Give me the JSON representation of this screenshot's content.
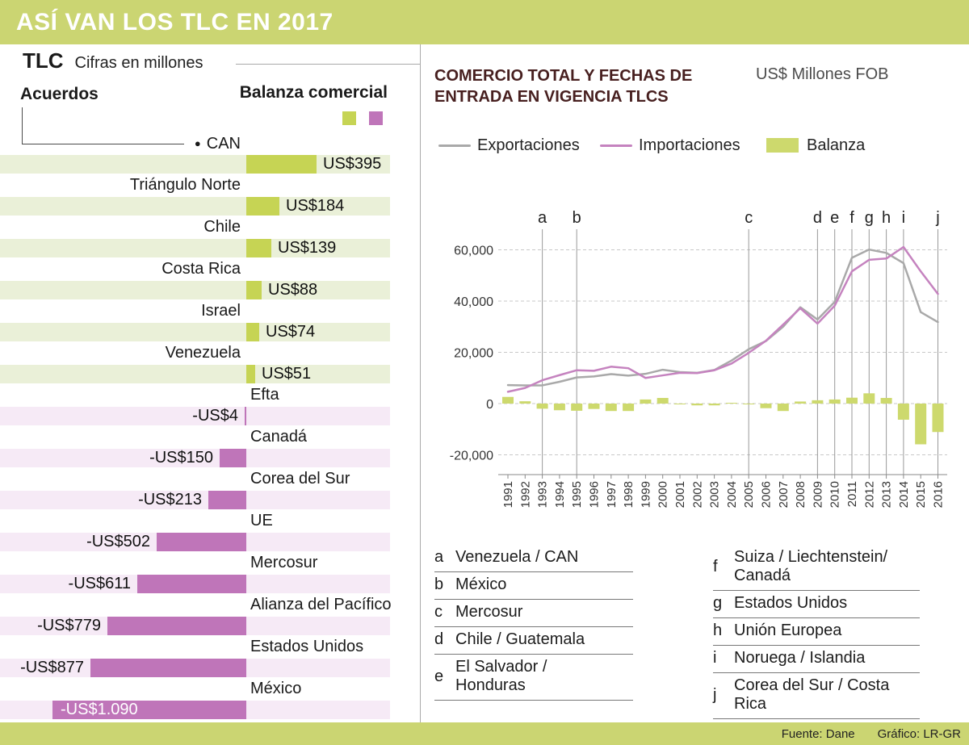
{
  "header": {
    "title": "ASÍ VAN LOS TLC EN 2017"
  },
  "footer": {
    "fuente": "Fuente: Dane",
    "grafico": "Gráfico: LR-GR"
  },
  "colors": {
    "band_green": "#cbd572",
    "bar_green": "#c6d454",
    "bar_purple": "#bf75b9",
    "row_green": "#eaf0d8",
    "row_purple": "#f6eaf6",
    "line_gray": "#a9a9a9",
    "line_purple": "#c583bf",
    "balanza_green": "#cdd96d",
    "heading_maroon": "#471f1f"
  },
  "left_panel": {
    "title": "TLC",
    "subtitle": "Cifras en millones",
    "col_acuerdos": "Acuerdos",
    "col_balanza": "Balanza comercial"
  },
  "right_panel": {
    "heading": "COMERCIO TOTAL Y FECHAS DE ENTRADA EN VIGENCIA TLCS",
    "unit": "US$ Millones FOB",
    "legend": [
      {
        "label": "Exportaciones",
        "swatch": "line",
        "color": "#a9a9a9"
      },
      {
        "label": "Importaciones",
        "swatch": "line",
        "color": "#c583bf"
      },
      {
        "label": "Balanza",
        "swatch": "rect",
        "color": "#cdd96d"
      }
    ]
  },
  "chart_data": [
    {
      "type": "bar",
      "orientation": "horizontal",
      "title": "Balanza comercial",
      "unit": "US$ millones",
      "categories": [
        "CAN",
        "Triángulo Norte",
        "Chile",
        "Costa Rica",
        "Israel",
        "Venezuela",
        "Efta",
        "Canadá",
        "Corea del Sur",
        "UE",
        "Mercosur",
        "Alianza del Pacífico",
        "Estados Unidos",
        "México"
      ],
      "values": [
        395,
        184,
        139,
        88,
        74,
        51,
        -4,
        -150,
        -213,
        -502,
        -611,
        -779,
        -877,
        -1090
      ],
      "value_labels": [
        "US$395",
        "US$184",
        "US$139",
        "US$88",
        "US$74",
        "US$51",
        "-US$4",
        "-US$150",
        "-US$213",
        "-US$502",
        "-US$611",
        "-US$779",
        "-US$877",
        "-US$1.090"
      ]
    },
    {
      "type": "line",
      "title": "COMERCIO TOTAL Y FECHAS DE ENTRADA EN VIGENCIA TLCS",
      "ylabel": "US$ Millones FOB",
      "ylim": [
        -20000,
        60000
      ],
      "yticks": [
        60000,
        40000,
        20000,
        0,
        -20000
      ],
      "ytick_labels": [
        "60,000",
        "40,000",
        "20,000",
        "0",
        "-20,000"
      ],
      "x": [
        1991,
        1992,
        1993,
        1994,
        1995,
        1996,
        1997,
        1998,
        1999,
        2000,
        2001,
        2002,
        2003,
        2004,
        2005,
        2006,
        2007,
        2008,
        2009,
        2010,
        2011,
        2012,
        2013,
        2014,
        2015,
        2016
      ],
      "series": [
        {
          "name": "Exportaciones",
          "color": "#a9a9a9",
          "values": [
            7200,
            7100,
            7100,
            8500,
            10200,
            10600,
            11500,
            10900,
            11600,
            13200,
            12300,
            12000,
            13100,
            16800,
            21200,
            24400,
            30000,
            37600,
            32800,
            39700,
            56900,
            60100,
            58800,
            54800,
            35700,
            31800
          ]
        },
        {
          "name": "Importaciones",
          "color": "#c583bf",
          "values": [
            4600,
            6100,
            9100,
            11100,
            13000,
            12800,
            14400,
            13800,
            10000,
            11000,
            12000,
            11900,
            13000,
            15600,
            19800,
            24500,
            30800,
            37200,
            31200,
            38200,
            51600,
            56100,
            56600,
            61100,
            51600,
            42800
          ]
        }
      ],
      "bars": {
        "name": "Balanza",
        "color": "#cdd96d",
        "values": [
          2600,
          900,
          -2000,
          -2600,
          -2800,
          -2100,
          -2900,
          -2900,
          1600,
          2200,
          -300,
          -700,
          -700,
          300,
          -200,
          -1800,
          -2900,
          800,
          1300,
          1600,
          2300,
          4000,
          2200,
          -6300,
          -15900,
          -11100
        ]
      },
      "markers": [
        {
          "letter": "a",
          "year": 1993,
          "label": "Venezuela / CAN"
        },
        {
          "letter": "b",
          "year": 1995,
          "label": "México"
        },
        {
          "letter": "c",
          "year": 2005,
          "label": "Mercosur"
        },
        {
          "letter": "d",
          "year": 2009,
          "label": "Chile / Guatemala"
        },
        {
          "letter": "e",
          "year": 2010,
          "label": "El Salvador / Honduras"
        },
        {
          "letter": "f",
          "year": 2011,
          "label": "Suiza / Liechtenstein/ Canadá"
        },
        {
          "letter": "g",
          "year": 2012,
          "label": "Estados Unidos"
        },
        {
          "letter": "h",
          "year": 2013,
          "label": "Unión Europea"
        },
        {
          "letter": "i",
          "year": 2014,
          "label": "Noruega / Islandia"
        },
        {
          "letter": "j",
          "year": 2016,
          "label": "Corea del Sur / Costa Rica"
        }
      ],
      "marker_legend_columns": [
        [
          "a",
          "b",
          "c",
          "d",
          "e"
        ],
        [
          "f",
          "g",
          "h",
          "i",
          "j"
        ]
      ]
    }
  ]
}
